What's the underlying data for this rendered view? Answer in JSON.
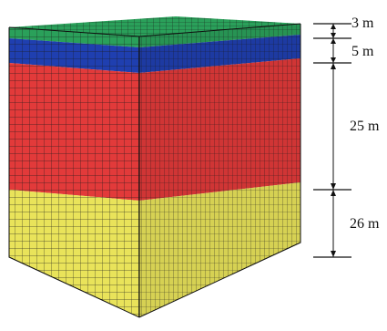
{
  "figure": {
    "layers": [
      {
        "id": "layer-1",
        "thickness_label": "3 m",
        "color": "#2aa05a"
      },
      {
        "id": "layer-2",
        "thickness_label": "5 m",
        "color": "#1f3fb0"
      },
      {
        "id": "layer-3",
        "thickness_label": "25 m",
        "color": "#e23a3a"
      },
      {
        "id": "layer-4",
        "thickness_label": "26 m",
        "color": "#e9e35a"
      }
    ],
    "mesh_line_color": "#1a1a1a",
    "dimension_line_color": "#111111"
  }
}
